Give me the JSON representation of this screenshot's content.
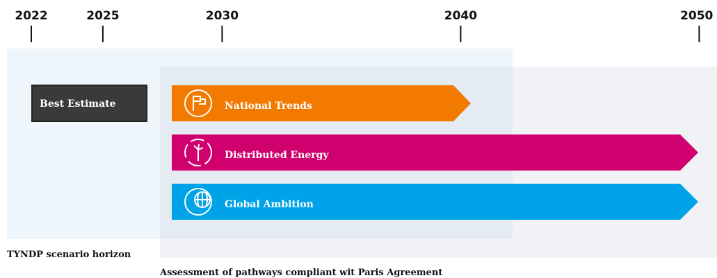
{
  "timeline": {
    "years": [
      2022,
      2025,
      2030,
      2040,
      2050
    ],
    "best_estimate": "Best Estimate",
    "scenarios": [
      "National Trends",
      "Distributed Energy",
      "Global Ambition"
    ],
    "horizon_caption": "TYNDP scenario horizon",
    "paris_caption": "Assessment of pathways compliant wit Paris Agreement"
  }
}
